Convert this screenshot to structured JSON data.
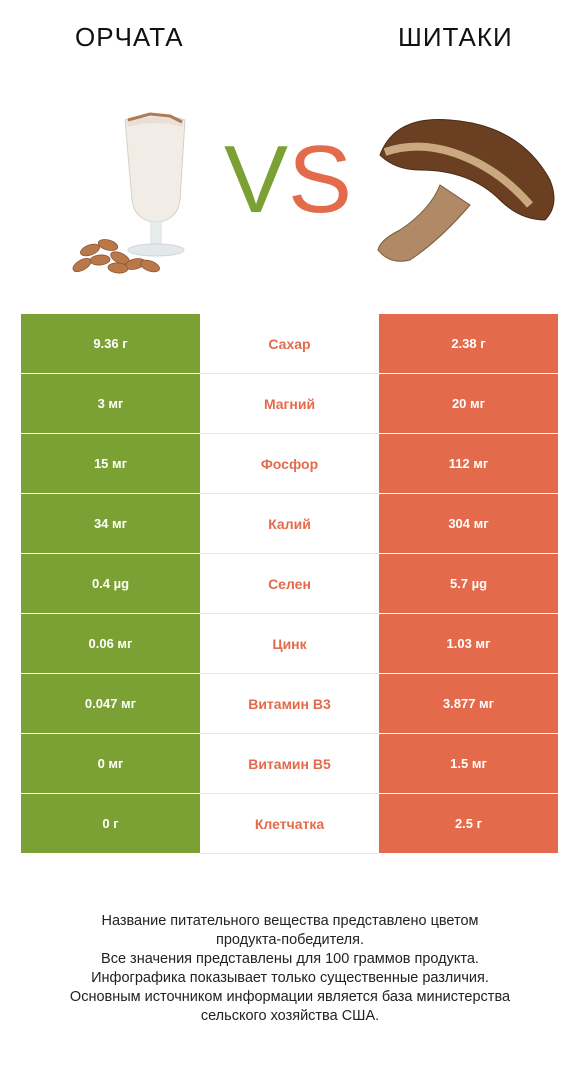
{
  "header": {
    "left_title": "ОРЧАТА",
    "right_title": "ШИТАКИ",
    "vs_v": "V",
    "vs_s": "S"
  },
  "colors": {
    "winner_left": "#7ba135",
    "winner_right": "#e36b4b"
  },
  "rows": [
    {
      "left": "9.36 г",
      "label": "Сахар",
      "right": "2.38 г"
    },
    {
      "left": "3 мг",
      "label": "Магний",
      "right": "20 мг"
    },
    {
      "left": "15 мг",
      "label": "Фосфор",
      "right": "112 мг"
    },
    {
      "left": "34 мг",
      "label": "Калий",
      "right": "304 мг"
    },
    {
      "left": "0.4 µg",
      "label": "Селен",
      "right": "5.7 µg"
    },
    {
      "left": "0.06 мг",
      "label": "Цинк",
      "right": "1.03 мг"
    },
    {
      "left": "0.047 мг",
      "label": "Витамин B3",
      "right": "3.877 мг"
    },
    {
      "left": "0 мг",
      "label": "Витамин B5",
      "right": "1.5 мг"
    },
    {
      "left": "0 г",
      "label": "Клетчатка",
      "right": "2.5 г"
    }
  ],
  "footer": [
    "Название питательного вещества представлено цветом",
    "продукта-победителя.",
    "Все значения представлены для 100 граммов продукта.",
    "Инфографика показывает только существенные различия.",
    "Основным источником информации является база министерства",
    "сельского хозяйства США."
  ]
}
